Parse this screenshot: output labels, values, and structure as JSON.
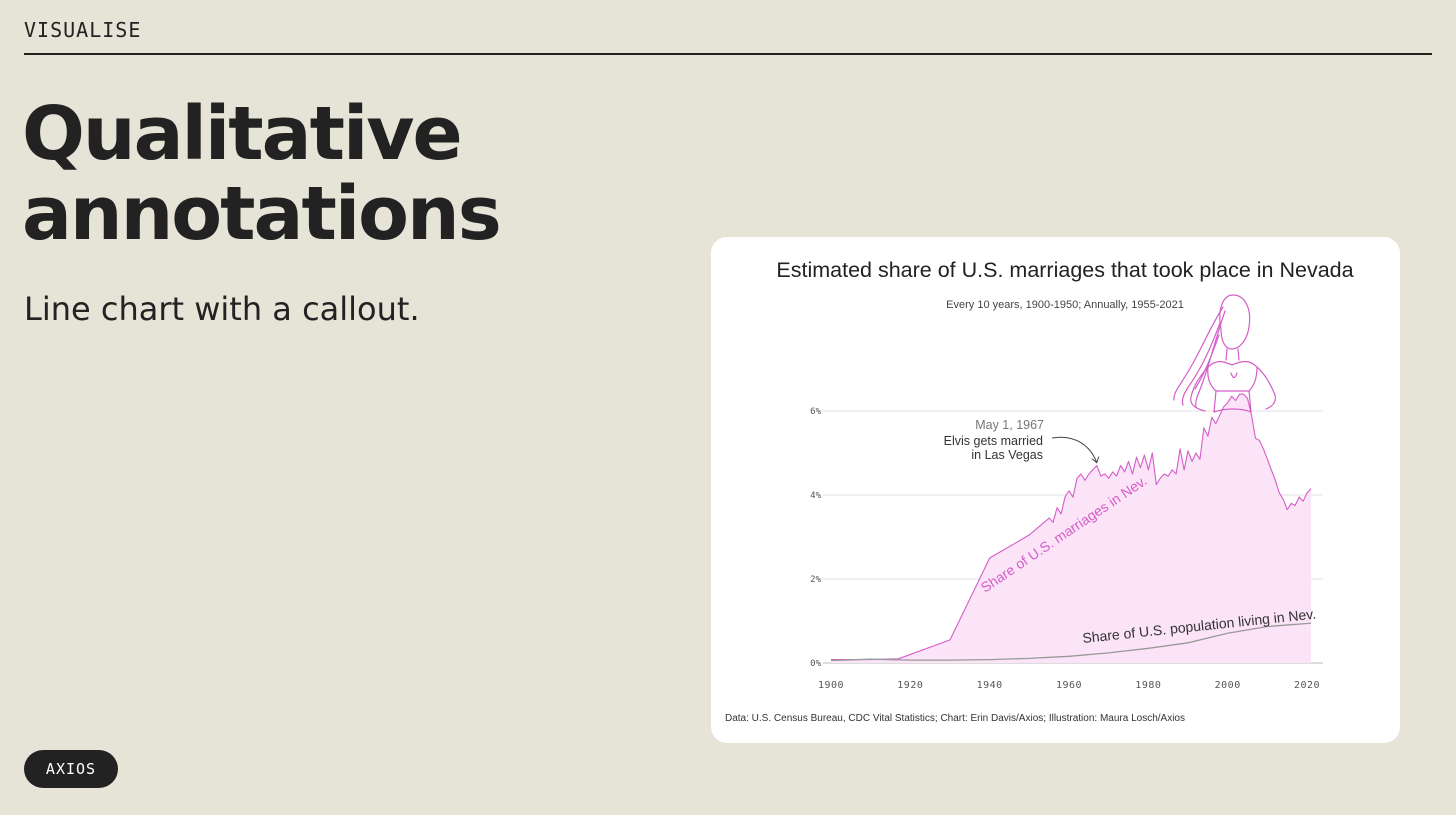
{
  "header": {
    "kicker": "VISUALISE"
  },
  "headline": {
    "line1": "Qualitative",
    "line2": "annotations"
  },
  "subtitle": "Line chart with a callout.",
  "badge": {
    "label": "AXIOS"
  },
  "colors": {
    "background": "#e6e3d7",
    "accent": "#d45ec8",
    "fill": "#fbe3f8",
    "text": "#222222"
  },
  "chart_data": {
    "type": "area",
    "title": "Estimated share of U.S. marriages that took place in Nevada",
    "subtitle": "Every 10 years, 1900-1950; Annually, 1955-2021",
    "source": "Data: U.S. Census Bureau, CDC Vital Statistics; Chart: Erin Davis/Axios; Illustration: Maura Losch/Axios",
    "xlim": [
      1900,
      2021
    ],
    "ylim": [
      0,
      6
    ],
    "xticks": [
      1900,
      1920,
      1940,
      1960,
      1980,
      2000,
      2020
    ],
    "yticks": [
      {
        "value": 0,
        "label": "0%"
      },
      {
        "value": 2,
        "label": "2%"
      },
      {
        "value": 4,
        "label": "4%"
      },
      {
        "value": 6,
        "label": "6%"
      }
    ],
    "grid": true,
    "series": [
      {
        "name": "Share of U.S. marriages in Nev.",
        "style": "area",
        "color": "#d45ec8",
        "x": [
          1900,
          1910,
          1917,
          1930,
          1940,
          1950,
          1955,
          1956,
          1957,
          1958,
          1959,
          1960,
          1961,
          1962,
          1963,
          1964,
          1965,
          1966,
          1967,
          1968,
          1969,
          1970,
          1971,
          1972,
          1973,
          1974,
          1975,
          1976,
          1977,
          1978,
          1979,
          1980,
          1981,
          1982,
          1983,
          1984,
          1985,
          1986,
          1987,
          1988,
          1989,
          1990,
          1991,
          1992,
          1993,
          1994,
          1995,
          1996,
          1997,
          1998,
          1999,
          2000,
          2001,
          2002,
          2003,
          2004,
          2005,
          2006,
          2007,
          2008,
          2009,
          2010,
          2011,
          2012,
          2013,
          2014,
          2015,
          2016,
          2017,
          2018,
          2019,
          2020,
          2021
        ],
        "values": [
          0.08,
          0.08,
          0.1,
          0.55,
          2.5,
          3.05,
          3.45,
          3.35,
          3.7,
          3.55,
          3.95,
          4.1,
          3.95,
          4.4,
          4.5,
          4.35,
          4.5,
          4.6,
          4.7,
          4.45,
          4.5,
          4.4,
          4.55,
          4.45,
          4.7,
          4.55,
          4.8,
          4.5,
          4.9,
          4.65,
          4.95,
          4.6,
          5.0,
          4.25,
          4.4,
          4.5,
          4.45,
          4.6,
          4.5,
          5.1,
          4.6,
          5.05,
          4.8,
          5.0,
          4.85,
          5.6,
          5.4,
          5.85,
          5.7,
          5.9,
          6.1,
          6.2,
          6.35,
          6.25,
          6.4,
          6.4,
          6.3,
          5.9,
          5.35,
          5.3,
          5.1,
          4.85,
          4.6,
          4.35,
          4.05,
          3.9,
          3.65,
          3.8,
          3.75,
          3.95,
          3.85,
          4.05,
          4.15
        ]
      },
      {
        "name": "Share of U.S. population living in Nev.",
        "style": "line",
        "color": "#999999",
        "x": [
          1900,
          1910,
          1920,
          1930,
          1940,
          1950,
          1960,
          1970,
          1980,
          1990,
          2000,
          2010,
          2020,
          2021
        ],
        "values": [
          0.06,
          0.09,
          0.07,
          0.07,
          0.08,
          0.11,
          0.16,
          0.24,
          0.35,
          0.48,
          0.71,
          0.87,
          0.94,
          0.95
        ]
      }
    ],
    "annotation": {
      "date": "May 1, 1967",
      "line1": "Elvis gets married",
      "line2": "in Las Vegas",
      "x": 1967,
      "y": 4.7
    }
  }
}
